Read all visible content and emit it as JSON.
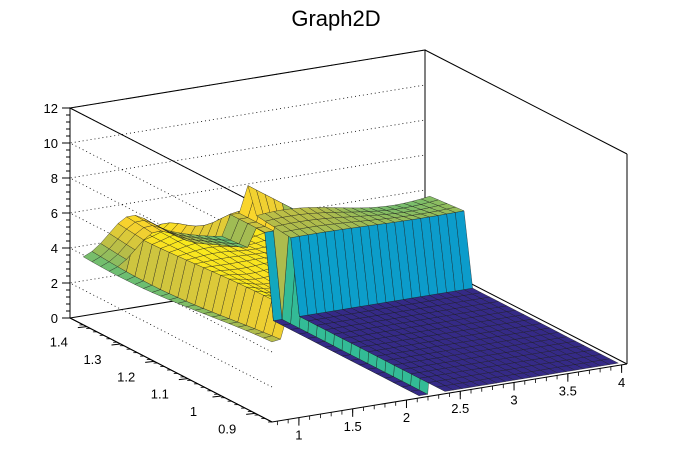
{
  "chart_data": {
    "type": "surface",
    "title": "Graph2D",
    "xlabel": "",
    "ylabel": "",
    "zlabel": "",
    "xlim": [
      0.75,
      4.05
    ],
    "ylim": [
      0.85,
      1.45
    ],
    "zlim": [
      0,
      12
    ],
    "x_ticks": [
      "1",
      "1.5",
      "2",
      "2.5",
      "3",
      "3.5",
      "4"
    ],
    "y_ticks": [
      "0.9",
      "1",
      "1.1",
      "1.2",
      "1.3",
      "1.4"
    ],
    "z_ticks": [
      "0",
      "2",
      "4",
      "6",
      "8",
      "10",
      "12"
    ],
    "grid": true,
    "palette": [
      "#352a87",
      "#1f6ee0",
      "#0aa2c8",
      "#3abf8e",
      "#b3bc4a",
      "#f9d32d",
      "#f9fb0e"
    ],
    "features": [
      {
        "name": "plateau",
        "x_range": [
          0.9,
          2.1
        ],
        "y_range": [
          0.85,
          1.4
        ],
        "z": 6.2
      },
      {
        "name": "wall",
        "x_range": [
          2.3,
          2.32
        ],
        "y_range": [
          0.85,
          1.4
        ],
        "z": 6.3
      },
      {
        "name": "flat-floor",
        "x_range": [
          2.35,
          4.0
        ],
        "y_range": [
          0.85,
          1.4
        ],
        "z": 0.0
      },
      {
        "name": "back-ridge",
        "x_range": [
          0.75,
          2.4
        ],
        "y_range": [
          1.3,
          1.45
        ],
        "z": 4.5
      }
    ]
  }
}
